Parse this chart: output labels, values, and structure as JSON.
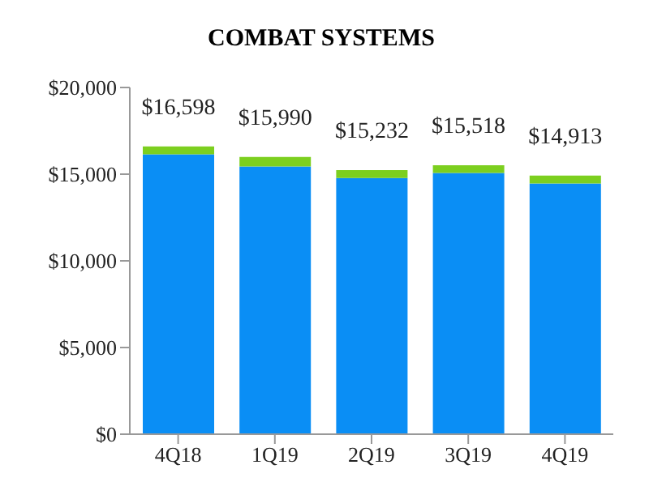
{
  "chart_data": {
    "type": "bar",
    "title": "COMBAT SYSTEMS",
    "categories": [
      "4Q18",
      "1Q19",
      "2Q19",
      "3Q19",
      "4Q19"
    ],
    "stacked": true,
    "series": [
      {
        "color": "#0a8ef5",
        "values": [
          16148,
          15440,
          14782,
          15068,
          14463
        ]
      },
      {
        "color": "#7ccf1f",
        "values": [
          450,
          550,
          450,
          450,
          450
        ]
      }
    ],
    "totals": [
      "$16,598",
      "$15,990",
      "$15,232",
      "$15,518",
      "$14,913"
    ],
    "ylim": [
      0,
      20000
    ],
    "yticks": [
      {
        "value": 0,
        "label": "$0"
      },
      {
        "value": 5000,
        "label": "$5,000"
      },
      {
        "value": 10000,
        "label": "$10,000"
      },
      {
        "value": 15000,
        "label": "$15,000"
      },
      {
        "value": 20000,
        "label": "$20,000"
      }
    ],
    "grid": false,
    "legend": false
  }
}
